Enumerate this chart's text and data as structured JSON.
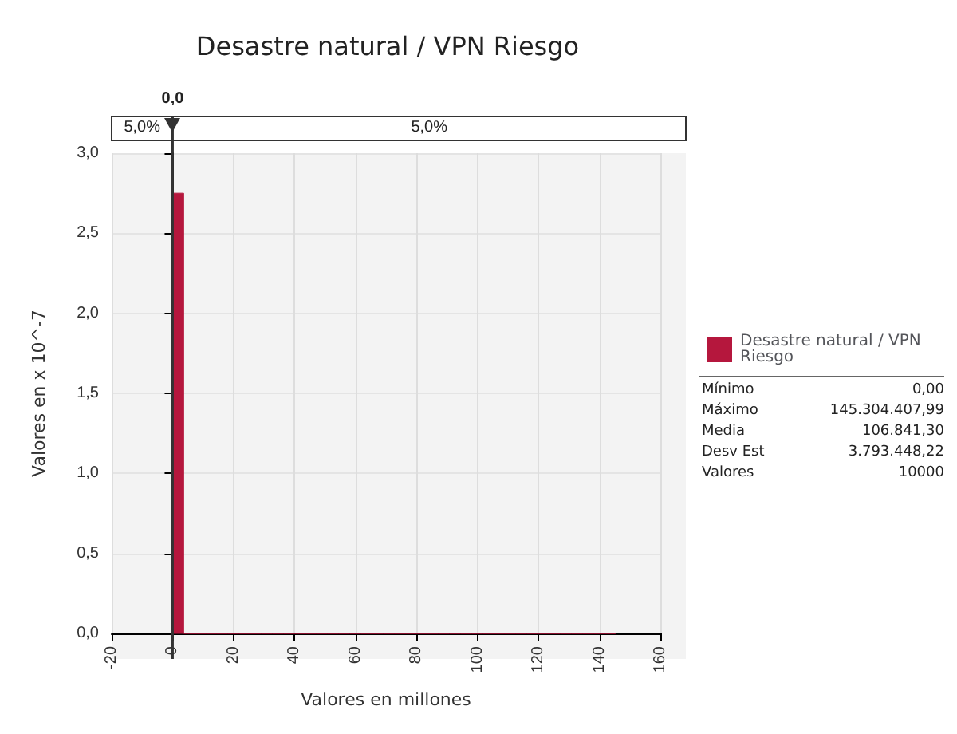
{
  "chart_data": {
    "type": "histogram",
    "title": "Desastre natural / VPN Riesgo",
    "xlabel": "Valores en millones",
    "ylabel": "Valores en x 10^-7",
    "bins": [
      0,
      3.63,
      7.27,
      10.9,
      14.53,
      18.16,
      21.8,
      25.43,
      29.06,
      32.69,
      36.33,
      39.96,
      43.59,
      47.23,
      50.86,
      54.49,
      58.12,
      61.76,
      65.39,
      69.02,
      72.65,
      76.29,
      79.92,
      83.55,
      87.18,
      90.82,
      94.45,
      98.08,
      101.72,
      105.35,
      108.98,
      112.61,
      116.25,
      119.88,
      123.51,
      127.14,
      130.78,
      134.41,
      138.04,
      141.67,
      145.3
    ],
    "series": [
      {
        "name": "Desastre natural / VPN Riesgo",
        "color": "#b5173d",
        "values": [
          2.75,
          0,
          0,
          0,
          0,
          0,
          0,
          0,
          0,
          0,
          0,
          0,
          0,
          0,
          0,
          0,
          0,
          0,
          0,
          0,
          0,
          0,
          0,
          0,
          0,
          0,
          0,
          0,
          0,
          0,
          0,
          0,
          0,
          0,
          0,
          0,
          0,
          0,
          0,
          0
        ]
      }
    ],
    "xlim": [
      -20,
      160
    ],
    "xticks": [
      -20,
      0,
      20,
      40,
      60,
      80,
      100,
      120,
      140,
      160
    ],
    "ylim": [
      0,
      3
    ],
    "yticks": [
      {
        "value": 0,
        "label": "0,0"
      },
      {
        "value": 0.5,
        "label": "0,5"
      },
      {
        "value": 1,
        "label": "1,0"
      },
      {
        "value": 1.5,
        "label": "1,5"
      },
      {
        "value": 2,
        "label": "2,0"
      },
      {
        "value": 2.5,
        "label": "2,5"
      },
      {
        "value": 3,
        "label": "3,0"
      }
    ],
    "ref_lines": [
      {
        "axis": "x",
        "value": 0,
        "label": "0,0"
      }
    ],
    "annotations": [
      "5,0%",
      "5,0%",
      "Mínimo",
      "0,00",
      "Máximo",
      "145.304.407,99",
      "Media",
      "106.841,30",
      "Desv Est",
      "3.793.448,22",
      "Valores",
      "10000"
    ],
    "grid": true,
    "legend": "right"
  }
}
